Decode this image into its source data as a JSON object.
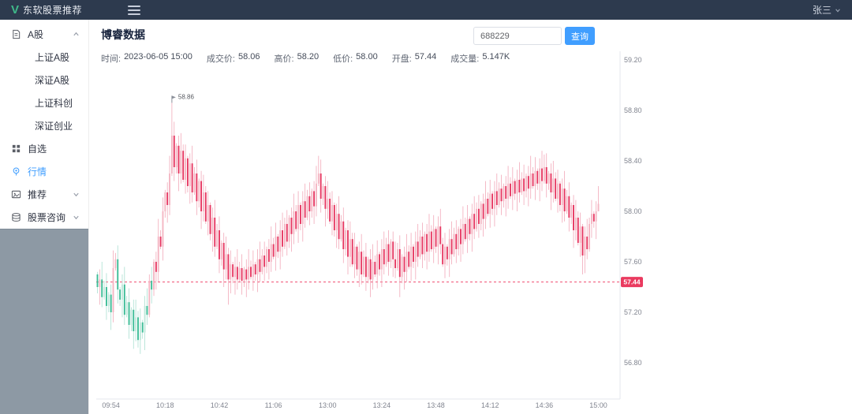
{
  "navbar": {
    "logo": "V",
    "brand": "东软股票推荐",
    "user": "张三"
  },
  "sidebar": {
    "items": [
      {
        "label": "A股",
        "icon": "document-icon",
        "expand": "up",
        "children": [
          "上证A股",
          "深证A股",
          "上证科创",
          "深证创业"
        ]
      },
      {
        "label": "自选",
        "icon": "grid-icon"
      },
      {
        "label": "行情",
        "icon": "location-icon",
        "active": true
      },
      {
        "label": "推荐",
        "icon": "image-icon",
        "expand": "down"
      },
      {
        "label": "股票咨询",
        "icon": "database-icon",
        "expand": "down"
      }
    ]
  },
  "header": {
    "title": "博睿数据"
  },
  "search": {
    "value": "688229",
    "button": "查询"
  },
  "chart_info": {
    "fields": [
      {
        "label": "时间:",
        "value": "2023-06-05 15:00"
      },
      {
        "label": "成交价:",
        "value": "58.06"
      },
      {
        "label": "高价:",
        "value": "58.20"
      },
      {
        "label": "低价:",
        "value": "58.00"
      },
      {
        "label": "开盘:",
        "value": "57.44"
      },
      {
        "label": "成交量:",
        "value": "5.147K"
      }
    ]
  },
  "chart_data": {
    "type": "candlestick",
    "title": "博睿数据",
    "stock_code": "688229",
    "interval_minutes": 1,
    "x_labels": [
      "09:54",
      "10:18",
      "10:42",
      "11:06",
      "13:00",
      "13:24",
      "13:48",
      "14:12",
      "14:36",
      "15:00"
    ],
    "y_ticks": [
      59.2,
      58.8,
      58.4,
      58.0,
      57.6,
      57.2,
      56.8
    ],
    "ylim": [
      56.51,
      59.3
    ],
    "ref_price": 57.44,
    "ref_price_label": "57.44",
    "high_marker": {
      "index": 33,
      "price": 58.86,
      "label": "58.86"
    },
    "open_first": 57.5,
    "last_close": 58.06,
    "closes": [
      57.4,
      57.46,
      57.32,
      57.4,
      57.25,
      57.34,
      57.2,
      57.55,
      57.62,
      57.38,
      57.3,
      57.42,
      57.18,
      57.28,
      57.1,
      57.22,
      57.05,
      57.16,
      56.98,
      57.12,
      57.04,
      57.25,
      57.18,
      57.45,
      57.38,
      57.6,
      57.52,
      57.8,
      57.72,
      58.0,
      58.15,
      58.05,
      58.3,
      58.6,
      58.35,
      58.52,
      58.3,
      58.48,
      58.25,
      58.42,
      58.2,
      58.38,
      58.15,
      58.3,
      58.08,
      58.24,
      58.0,
      58.15,
      57.92,
      58.05,
      57.82,
      57.95,
      57.72,
      57.85,
      57.62,
      57.75,
      57.54,
      57.66,
      57.46,
      57.58,
      57.48,
      57.56,
      57.46,
      57.55,
      57.45,
      57.54,
      57.46,
      57.56,
      57.48,
      57.58,
      57.5,
      57.62,
      57.52,
      57.65,
      57.56,
      57.7,
      57.6,
      57.74,
      57.64,
      57.8,
      57.68,
      57.85,
      57.72,
      57.9,
      57.76,
      57.95,
      57.82,
      58.0,
      57.86,
      58.05,
      57.9,
      58.08,
      57.95,
      58.12,
      58.0,
      58.16,
      58.04,
      58.22,
      58.3,
      58.1,
      58.2,
      58.02,
      58.1,
      57.92,
      58.05,
      57.85,
      57.98,
      57.78,
      57.92,
      57.7,
      57.85,
      57.64,
      57.78,
      57.58,
      57.72,
      57.54,
      57.68,
      57.5,
      57.64,
      57.48,
      57.62,
      57.46,
      57.6,
      57.5,
      57.66,
      57.54,
      57.7,
      57.58,
      57.74,
      57.6,
      57.76,
      57.62,
      57.55,
      57.7,
      57.48,
      57.64,
      57.52,
      57.68,
      57.56,
      57.72,
      57.6,
      57.76,
      57.64,
      57.8,
      57.66,
      57.82,
      57.68,
      57.84,
      57.7,
      57.86,
      57.72,
      57.88,
      57.74,
      57.58,
      57.72,
      57.62,
      57.78,
      57.66,
      57.82,
      57.7,
      57.86,
      57.74,
      57.9,
      57.78,
      57.94,
      57.82,
      57.98,
      57.86,
      58.02,
      57.9,
      58.06,
      57.94,
      58.1,
      57.98,
      58.14,
      58.02,
      58.16,
      58.05,
      58.18,
      58.08,
      58.2,
      58.1,
      58.22,
      58.12,
      58.24,
      58.14,
      58.25,
      58.15,
      58.26,
      58.16,
      58.28,
      58.18,
      58.3,
      58.2,
      58.32,
      58.22,
      58.34,
      58.24,
      58.35,
      58.22,
      58.3,
      58.15,
      58.26,
      58.1,
      58.22,
      58.05,
      58.18,
      58.0,
      58.12,
      57.95,
      58.05,
      57.85,
      57.95,
      57.75,
      57.88,
      57.65,
      57.8,
      57.7,
      57.9,
      57.98,
      57.92,
      58.0,
      58.06
    ],
    "wick": {
      "base": 0.02,
      "variance": 0.12
    },
    "overrides": {
      "18": {
        "l": 56.92
      },
      "33": {
        "h": 58.86
      },
      "58": {
        "l": 57.26
      },
      "98": {
        "h": 58.44
      },
      "134": {
        "l": 57.32
      },
      "198": {
        "h": 58.45
      },
      "215": {
        "l": 57.5
      },
      "222": {
        "h": 58.2,
        "l": 58.0
      }
    },
    "label_start_index": 6,
    "label_step": 24,
    "colors": {
      "up_above": "#f4b6c3",
      "down_above": "#e73862",
      "wick_above": "#f2a9b9",
      "up_below": "#bfe8db",
      "down_below": "#3dbd97",
      "wick_below": "#aadfd1",
      "ref_line": "#ef4d71",
      "badge_bg": "#ea3a5f",
      "badge_text": "#ffffff",
      "axis_line": "#e4e7ed",
      "marker": "#8a8f99"
    }
  }
}
